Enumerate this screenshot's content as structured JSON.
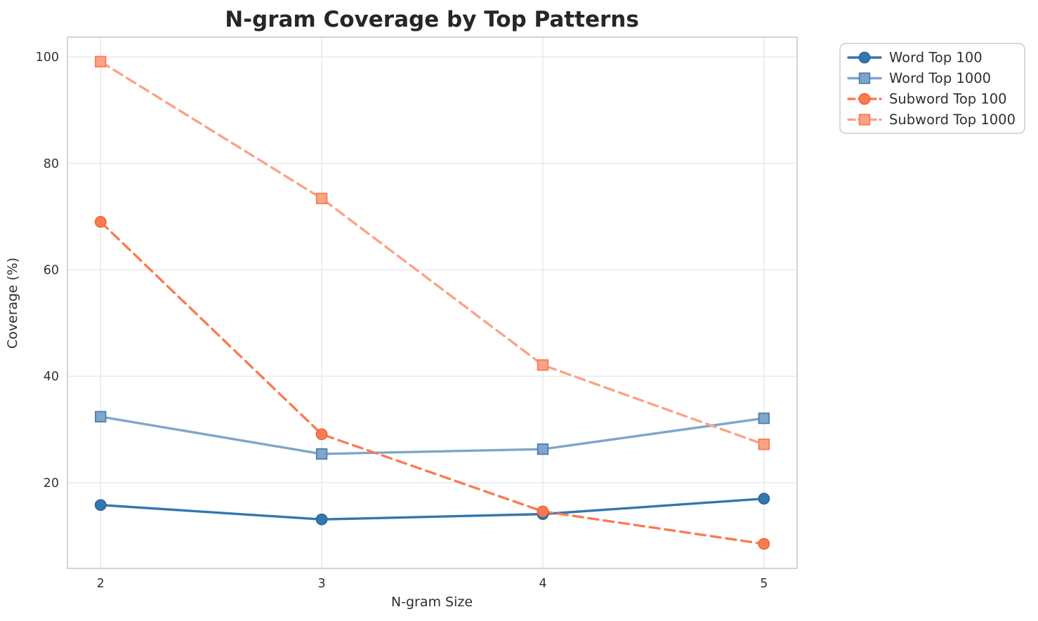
{
  "figure": {
    "kind": "matplotlib-style line chart"
  },
  "chart_data": {
    "type": "line",
    "title": "N-gram Coverage by Top Patterns",
    "xlabel": "N-gram Size",
    "ylabel": "Coverage (%)",
    "x": [
      2,
      3,
      4,
      5
    ],
    "xticks": [
      2,
      3,
      4,
      5
    ],
    "yticks": [
      20,
      40,
      60,
      80,
      100
    ],
    "xlim": [
      1.85,
      5.15
    ],
    "ylim": [
      3.9,
      103.7
    ],
    "grid": true,
    "legend_position": "outside-upper-right",
    "series": [
      {
        "name": "Word Top 100",
        "values": [
          15.8,
          13.1,
          14.1,
          17.0
        ],
        "color": "#3377AD",
        "marker_edge": "#2B6699",
        "marker": "circle",
        "linestyle": "solid"
      },
      {
        "name": "Word Top 1000",
        "values": [
          32.4,
          25.4,
          26.3,
          32.1
        ],
        "color": "#7FA5CB",
        "marker_edge": "#4E7FAE",
        "marker": "square",
        "linestyle": "solid"
      },
      {
        "name": "Subword Top 100",
        "values": [
          69.0,
          29.1,
          14.6,
          8.5
        ],
        "color": "#FA7B52",
        "marker_edge": "#EE6538",
        "marker": "circle",
        "linestyle": "dashed"
      },
      {
        "name": "Subword Top 1000",
        "values": [
          99.1,
          73.4,
          42.1,
          27.2
        ],
        "color": "#FBA385",
        "marker_edge": "#FA7B52",
        "marker": "square",
        "linestyle": "dashed"
      }
    ],
    "style": {
      "grid_color": "#E7E7EE",
      "spine_color": "#C9C9C9",
      "background": "#FFFFFF",
      "legend_border": "#CCCCCC",
      "legend_background": "#FFFFFF"
    }
  }
}
